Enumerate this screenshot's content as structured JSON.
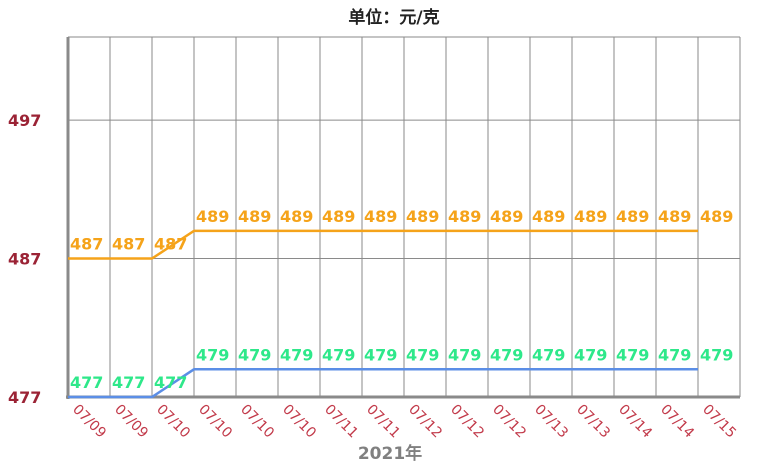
{
  "chart_data": {
    "type": "line",
    "title": "单位：元/克",
    "xlabel": "2021年",
    "ylabel": "",
    "categories": [
      "07/09",
      "07/09",
      "07/10",
      "07/10",
      "07/10",
      "07/10",
      "07/11",
      "07/11",
      "07/12",
      "07/12",
      "07/12",
      "07/13",
      "07/13",
      "07/14",
      "07/14",
      "07/15"
    ],
    "yticks": [
      "477",
      "487",
      "497"
    ],
    "ylim": [
      477,
      503
    ],
    "grid": true,
    "series": [
      {
        "values": [
          487,
          487,
          487,
          489,
          489,
          489,
          489,
          489,
          489,
          489,
          489,
          489,
          489,
          489,
          489,
          489
        ],
        "color": "#f5a31a",
        "label_color": "#f5a31a"
      },
      {
        "values": [
          477,
          477,
          477,
          479,
          479,
          479,
          479,
          479,
          479,
          479,
          479,
          479,
          479,
          479,
          479,
          479
        ],
        "color": "#5b8ee6",
        "label_color": "#2ee88a"
      }
    ],
    "axis_color": "#8a8a8a",
    "grid_color": "#8a8a8a"
  }
}
